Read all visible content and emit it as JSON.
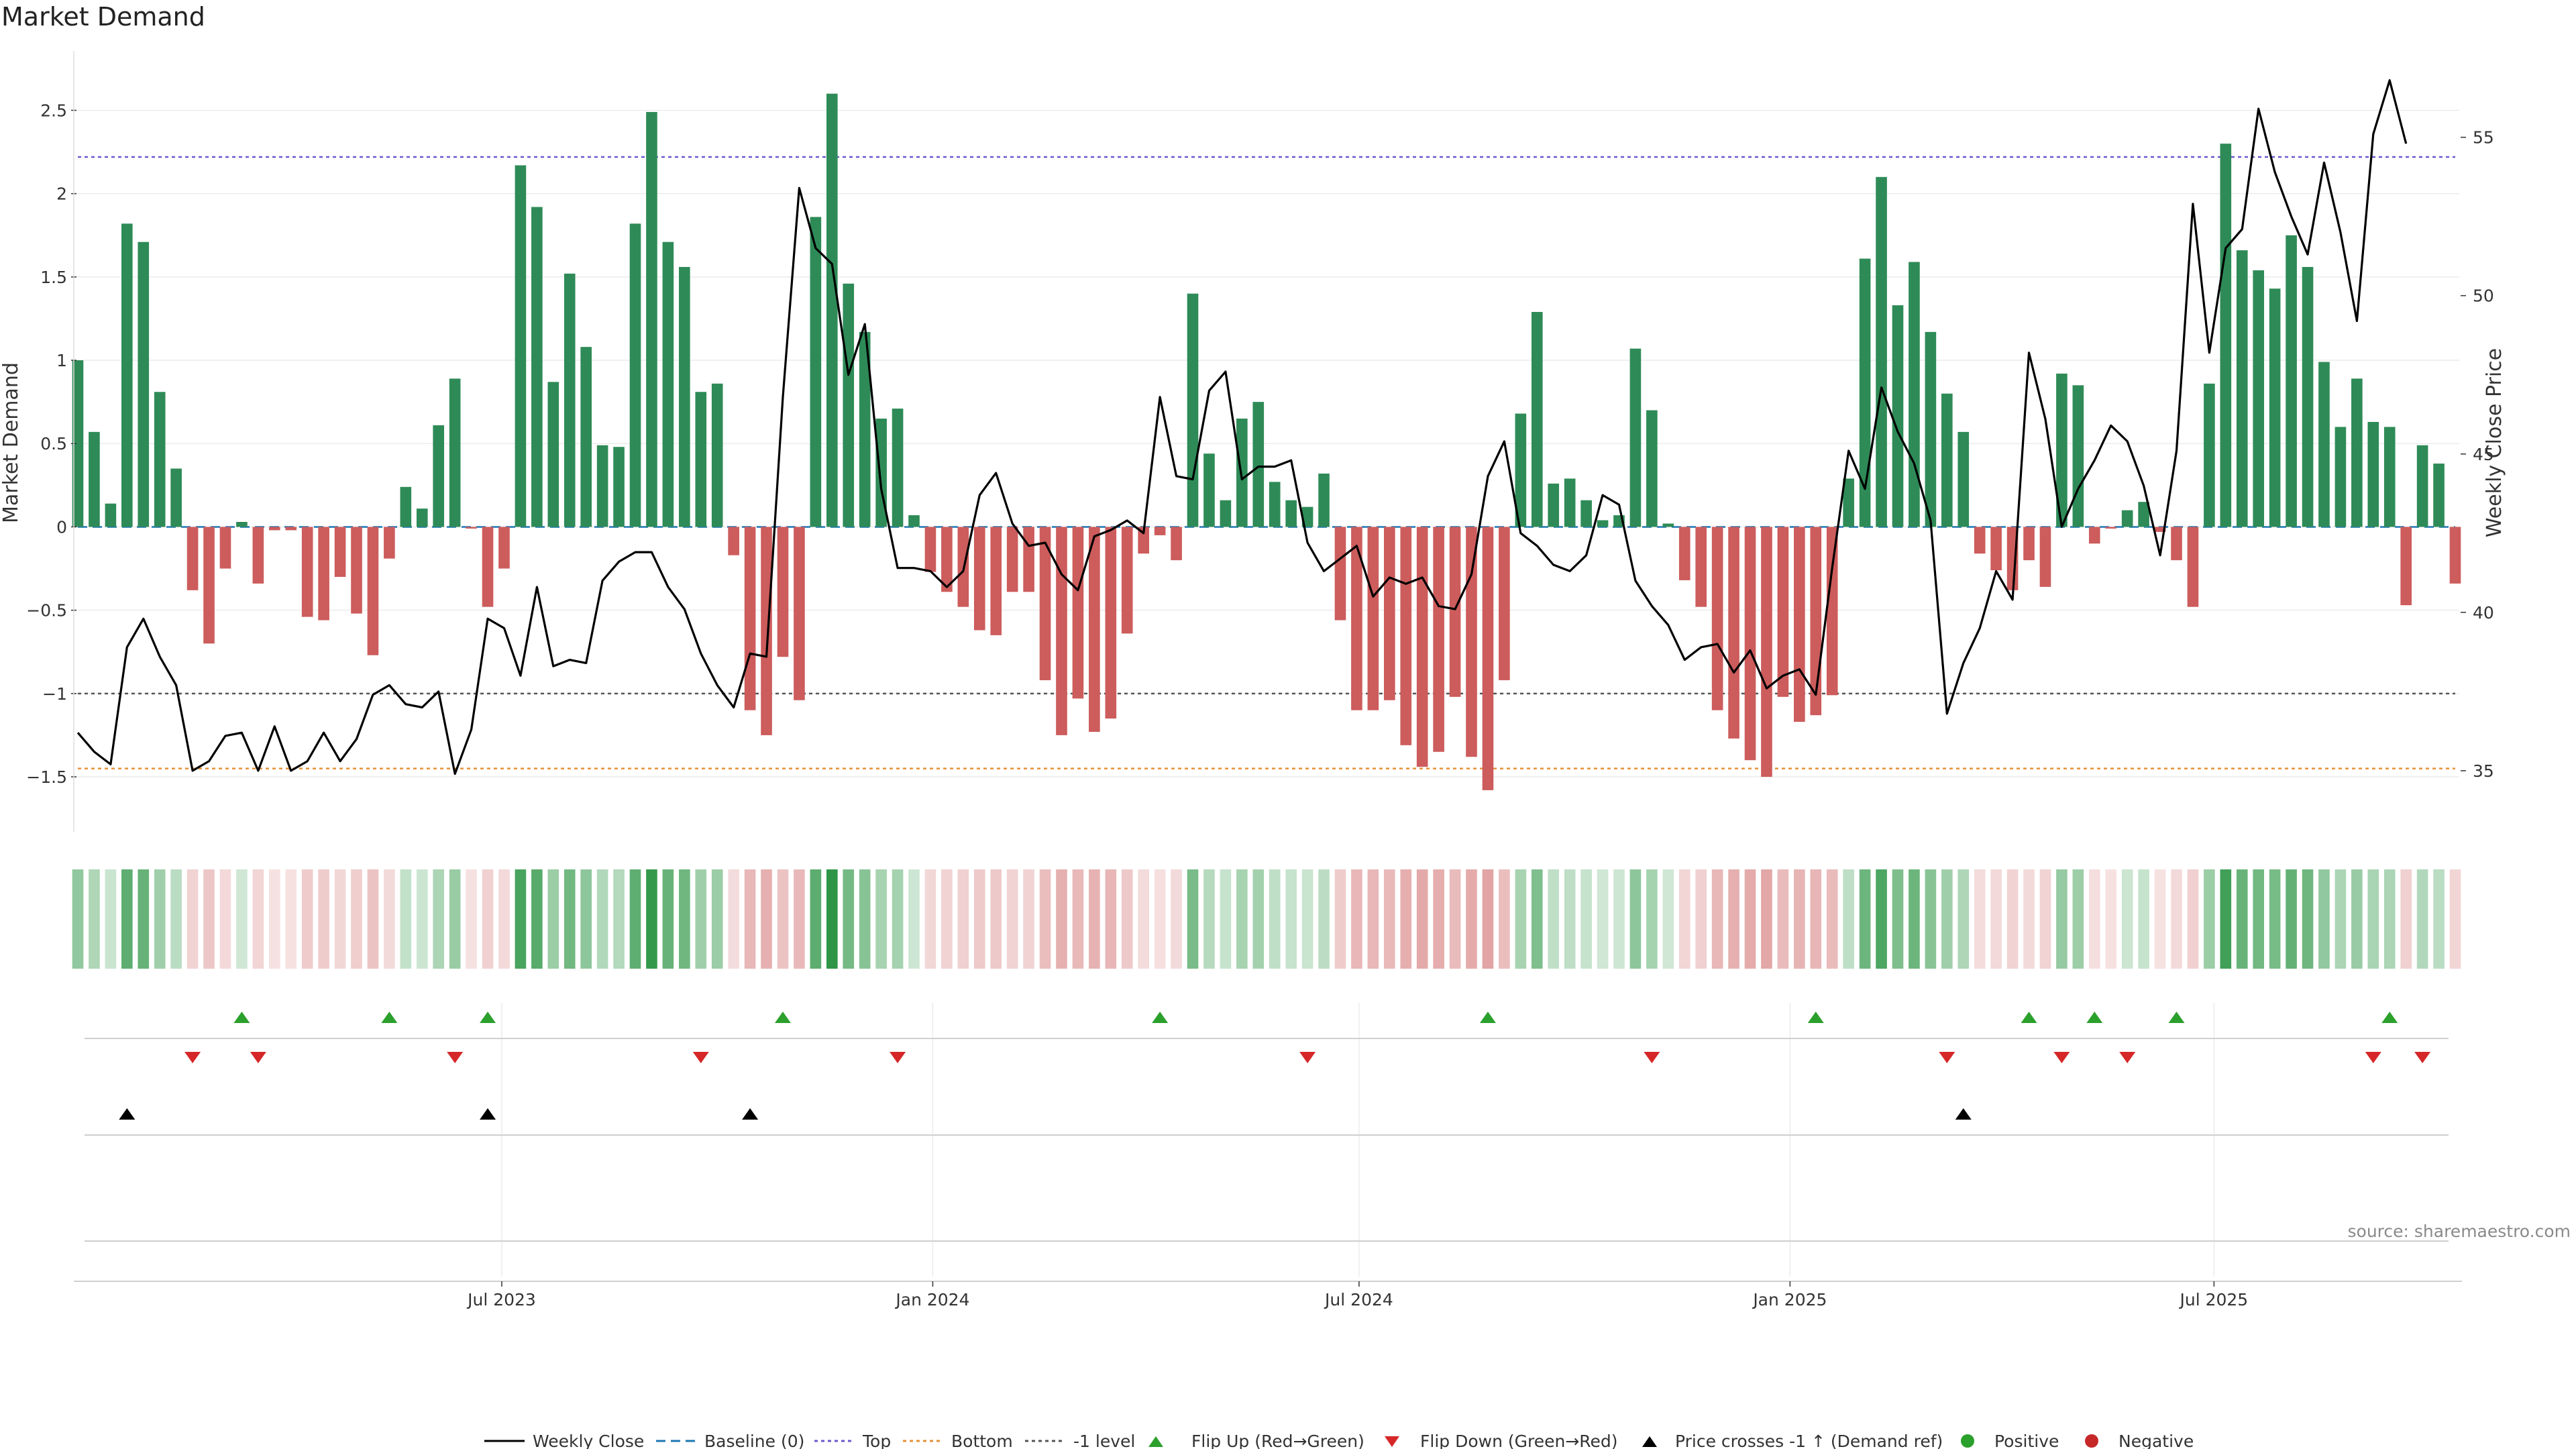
{
  "chart_data": {
    "type": "bar",
    "title": "Market Demand",
    "ylabel": "Market Demand",
    "y2label": "Weekly Close Price",
    "ylim": [
      -1.83,
      2.84
    ],
    "y2lim": [
      33.07,
      57.64
    ],
    "yticks": [
      "2.5",
      "2",
      "1.5",
      "1",
      "0.5",
      "0",
      "−0.5",
      "−1",
      "−1.5"
    ],
    "yticks_values": [
      2.5,
      2,
      1.5,
      1,
      0.5,
      0,
      -0.5,
      -1,
      -1.5
    ],
    "y2ticks": [
      "55",
      "50",
      "45",
      "40",
      "35"
    ],
    "y2ticks_values": [
      55,
      50,
      45,
      40,
      35
    ],
    "x_start_date": "2023-01-01",
    "xticks": [
      "Jul 2023",
      "Jan 2024",
      "Jul 2024",
      "Jan 2025",
      "Jul 2025"
    ],
    "xticks_dates": [
      "2023-07-01",
      "2024-01-01",
      "2024-07-01",
      "2025-01-01",
      "2025-07-01"
    ],
    "levels": {
      "top": 2.22,
      "bottom": -1.45,
      "minus_one": -1.0
    },
    "series": [
      {
        "name": "Market Demand",
        "values": [
          1.0,
          0.57,
          0.14,
          1.82,
          1.71,
          0.81,
          0.35,
          -0.38,
          -0.7,
          -0.25,
          0.03,
          -0.34,
          -0.02,
          -0.02,
          -0.54,
          -0.56,
          -0.3,
          -0.52,
          -0.77,
          -0.19,
          0.24,
          0.11,
          0.61,
          0.89,
          -0.01,
          -0.48,
          -0.25,
          2.17,
          1.92,
          0.87,
          1.52,
          1.08,
          0.49,
          0.48,
          1.82,
          2.49,
          1.71,
          1.56,
          0.81,
          0.86,
          -0.17,
          -1.1,
          -1.25,
          -0.78,
          -1.04,
          1.86,
          2.6,
          1.46,
          1.17,
          0.65,
          0.71,
          0.07,
          -0.27,
          -0.39,
          -0.48,
          -0.62,
          -0.65,
          -0.39,
          -0.39,
          -0.92,
          -1.25,
          -1.03,
          -1.23,
          -1.15,
          -0.64,
          -0.16,
          -0.05,
          -0.2,
          1.4,
          0.44,
          0.16,
          0.65,
          0.75,
          0.27,
          0.16,
          0.12,
          0.32,
          -0.56,
          -1.1,
          -1.1,
          -1.04,
          -1.31,
          -1.44,
          -1.35,
          -1.02,
          -1.38,
          -1.58,
          -0.92,
          0.68,
          1.29,
          0.26,
          0.29,
          0.16,
          0.04,
          0.07,
          1.07,
          0.7,
          0.02,
          -0.32,
          -0.48,
          -1.1,
          -1.27,
          -1.4,
          -1.5,
          -1.02,
          -1.17,
          -1.13,
          -1.01,
          0.29,
          1.61,
          2.1,
          1.33,
          1.59,
          1.17,
          0.8,
          0.57,
          -0.16,
          -0.26,
          -0.38,
          -0.2,
          -0.36,
          0.92,
          0.85,
          -0.1,
          -0.01,
          0.1,
          0.15,
          -0.03,
          -0.2,
          -0.48,
          0.86,
          2.3,
          1.66,
          1.54,
          1.43,
          1.75,
          1.56,
          0.99,
          0.6,
          0.89,
          0.63,
          0.6,
          -0.47,
          0.49,
          0.38,
          -0.34
        ]
      },
      {
        "name": "Weekly Close",
        "values": [
          36.2,
          35.6,
          35.2,
          38.9,
          39.8,
          38.6,
          37.7,
          35.0,
          35.3,
          36.1,
          36.2,
          35.0,
          36.4,
          35.0,
          35.3,
          36.2,
          35.3,
          36.0,
          37.4,
          37.7,
          37.1,
          37.0,
          37.5,
          34.9,
          36.3,
          39.8,
          39.5,
          38.0,
          40.8,
          38.3,
          38.5,
          38.4,
          41.0,
          41.6,
          41.9,
          41.9,
          40.8,
          40.1,
          38.7,
          37.7,
          37.0,
          38.7,
          38.6,
          46.8,
          53.4,
          51.5,
          51.0,
          47.5,
          49.1,
          43.9,
          41.4,
          41.4,
          41.3,
          40.8,
          41.3,
          43.7,
          44.4,
          42.8,
          42.1,
          42.2,
          41.2,
          40.7,
          42.4,
          42.6,
          42.9,
          42.5,
          46.8,
          44.3,
          44.2,
          47.0,
          47.6,
          44.2,
          44.6,
          44.6,
          44.8,
          42.2,
          41.3,
          41.7,
          42.1,
          40.5,
          41.1,
          40.9,
          41.1,
          40.2,
          40.1,
          41.2,
          44.3,
          45.4,
          42.5,
          42.1,
          41.5,
          41.3,
          41.8,
          43.7,
          43.4,
          41.0,
          40.2,
          39.6,
          38.5,
          38.9,
          39.0,
          38.1,
          38.8,
          37.6,
          38.0,
          38.2,
          37.4,
          41.4,
          45.1,
          43.9,
          47.1,
          45.7,
          44.7,
          42.9,
          36.8,
          38.4,
          39.5,
          41.3,
          40.4,
          48.2,
          46.1,
          42.7,
          43.9,
          44.8,
          45.9,
          45.4,
          44.0,
          41.8,
          45.1,
          52.9,
          48.2,
          51.5,
          52.1,
          55.9,
          53.9,
          52.5,
          51.3,
          54.2,
          52.0,
          49.2,
          55.1,
          56.8,
          54.8
        ]
      }
    ],
    "flip_up_weeks": [
      10,
      19,
      25,
      43,
      66,
      86,
      106,
      119,
      123,
      128,
      141
    ],
    "flip_down_weeks": [
      7,
      11,
      23,
      38,
      50,
      75,
      96,
      114,
      121,
      125,
      140,
      143
    ],
    "price_cross_weeks": [
      3,
      25,
      41,
      115
    ],
    "legend": {
      "weekly_close": "Weekly Close",
      "baseline": "Baseline (0)",
      "top": "Top",
      "bottom": "Bottom",
      "minus_one": "-1 level",
      "flip_up": "Flip Up (Red→Green)",
      "flip_down": "Flip Down (Green→Red)",
      "price_cross": "Price crosses -1 ↑ (Demand ref)",
      "positive": "Positive",
      "negative": "Negative"
    },
    "source": "source: sharemaestro.com",
    "colors": {
      "positive": "#2e8b57",
      "negative": "#cd5c5c",
      "price": "#000000",
      "baseline": "#1f77b4",
      "top": "#6a5acd",
      "bottom": "#e69138",
      "minus_one": "#555555",
      "flip_up": "#2ca02c",
      "flip_down": "#d62728",
      "dot_positive": "#2ca02c",
      "dot_negative": "#c62828"
    }
  }
}
